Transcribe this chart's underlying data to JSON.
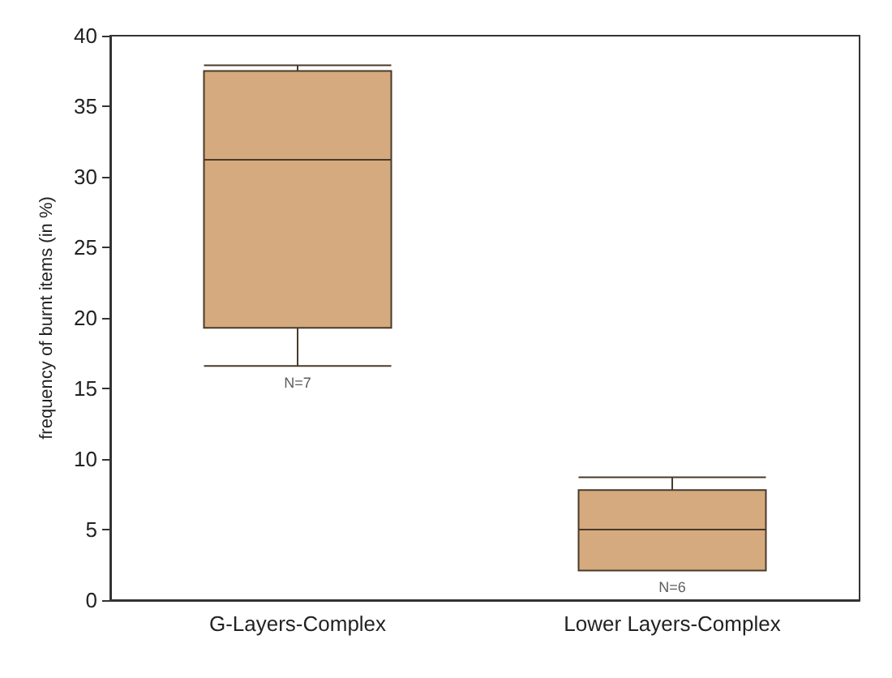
{
  "chart_data": {
    "type": "box",
    "ylabel": "frequency of burnt items (in %)",
    "categories": [
      "G-Layers-Complex",
      "Lower Layers-Complex"
    ],
    "color": "#d4aa7e",
    "boxes": [
      {
        "low": 16.6,
        "q1": 19.3,
        "median": 31.2,
        "q3": 37.5,
        "high": 37.9
      },
      {
        "low": 2.1,
        "q1": 2.1,
        "median": 5.0,
        "q3": 7.8,
        "high": 8.7
      }
    ],
    "ylim": [
      0,
      40
    ],
    "yticks": [
      0,
      5,
      10,
      15,
      20,
      25,
      30,
      35,
      40
    ],
    "grid": false,
    "annotations": [
      {
        "text": "N=7",
        "x": "G-Layers-Complex",
        "y": 16.6
      },
      {
        "text": "N=6",
        "x": "Lower Layers-Complex",
        "y": 2.1
      }
    ]
  }
}
